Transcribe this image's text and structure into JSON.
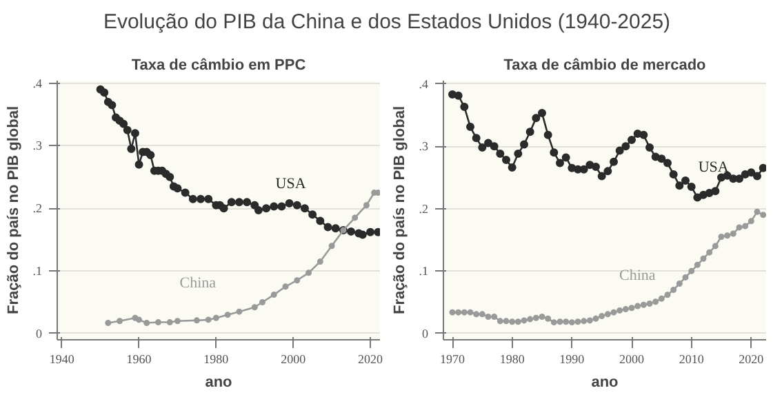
{
  "chart_data": [
    {
      "type": "other",
      "title": "Evolução do PIB da China e dos Estados Unidos (1940-2025)"
    },
    {
      "type": "line",
      "title": "Taxa de câmbio em PPC",
      "xlabel": "ano",
      "ylabel": "Fração do país no PIB global",
      "marker": "circle",
      "grid": "y",
      "xlim": [
        1938.8,
        2022.5
      ],
      "xticks": [
        1940,
        1960,
        1980,
        2000,
        2020
      ],
      "ylim": [
        -0.01,
        0.404
      ],
      "yticks": [
        {
          "value": 0,
          "label": "0"
        },
        {
          "value": 0.1,
          "label": ".1"
        },
        {
          "value": 0.2,
          "label": ".2"
        },
        {
          "value": 0.3,
          "label": ".3"
        },
        {
          "value": 0.4,
          "label": ".4"
        }
      ],
      "series": [
        {
          "name": "USA",
          "color": "#2b2b2b",
          "x": [
            1950,
            1951,
            1952,
            1953,
            1954,
            1955,
            1956,
            1957,
            1958,
            1959,
            1960,
            1961,
            1962,
            1963,
            1964,
            1965,
            1966,
            1967,
            1968,
            1969,
            1970,
            1972,
            1974,
            1976,
            1978,
            1980,
            1981,
            1982,
            1984,
            1986,
            1988,
            1990,
            1991,
            1993,
            1995,
            1997,
            1999,
            2001,
            2003,
            2005,
            2007,
            2009,
            2011,
            2013,
            2015,
            2017,
            2018,
            2020,
            2022
          ],
          "values": [
            0.39,
            0.385,
            0.37,
            0.365,
            0.345,
            0.34,
            0.335,
            0.325,
            0.295,
            0.32,
            0.27,
            0.29,
            0.29,
            0.285,
            0.26,
            0.26,
            0.26,
            0.255,
            0.25,
            0.235,
            0.232,
            0.225,
            0.215,
            0.215,
            0.215,
            0.205,
            0.205,
            0.2,
            0.21,
            0.21,
            0.21,
            0.205,
            0.197,
            0.2,
            0.203,
            0.203,
            0.208,
            0.205,
            0.2,
            0.19,
            0.18,
            0.17,
            0.168,
            0.165,
            0.163,
            0.16,
            0.158,
            0.162,
            0.162
          ]
        },
        {
          "name": "China",
          "color": "#9a9a9a",
          "x": [
            1952,
            1955,
            1959,
            1960,
            1962,
            1965,
            1968,
            1970,
            1975,
            1978,
            1980,
            1983,
            1986,
            1990,
            1992,
            1995,
            1998,
            2001,
            2004,
            2007,
            2010,
            2013,
            2016,
            2019,
            2021,
            2022
          ],
          "values": [
            0.017,
            0.02,
            0.025,
            0.022,
            0.017,
            0.018,
            0.018,
            0.02,
            0.021,
            0.022,
            0.025,
            0.03,
            0.035,
            0.042,
            0.05,
            0.062,
            0.075,
            0.085,
            0.097,
            0.115,
            0.14,
            0.165,
            0.185,
            0.205,
            0.225,
            0.225
          ]
        }
      ]
    },
    {
      "type": "line",
      "title": "Taxa de câmbio de mercado",
      "xlabel": "ano",
      "ylabel": "Fração do país no PIB global",
      "marker": "circle",
      "grid": "y",
      "xlim": [
        1968.5,
        2022.5
      ],
      "xticks": [
        1970,
        1980,
        1990,
        2000,
        2010,
        2020
      ],
      "ylim": [
        -0.01,
        0.405
      ],
      "yticks": [
        {
          "value": 0,
          "label": "0"
        },
        {
          "value": 0.1,
          "label": ".1"
        },
        {
          "value": 0.2,
          "label": ".2"
        },
        {
          "value": 0.3,
          "label": ".3"
        },
        {
          "value": 0.4,
          "label": ".4"
        }
      ],
      "series": [
        {
          "name": "USA",
          "color": "#2b2b2b",
          "x": [
            1970,
            1971,
            1972,
            1973,
            1974,
            1975,
            1976,
            1977,
            1978,
            1979,
            1980,
            1981,
            1982,
            1983,
            1984,
            1985,
            1986,
            1987,
            1988,
            1989,
            1990,
            1991,
            1992,
            1993,
            1994,
            1995,
            1996,
            1997,
            1998,
            1999,
            2000,
            2001,
            2002,
            2003,
            2004,
            2005,
            2006,
            2007,
            2008,
            2009,
            2010,
            2011,
            2012,
            2013,
            2014,
            2015,
            2016,
            2017,
            2018,
            2019,
            2020,
            2021,
            2022
          ],
          "values": [
            0.383,
            0.381,
            0.363,
            0.331,
            0.313,
            0.298,
            0.305,
            0.3,
            0.288,
            0.278,
            0.266,
            0.288,
            0.303,
            0.323,
            0.345,
            0.353,
            0.318,
            0.29,
            0.273,
            0.282,
            0.265,
            0.263,
            0.263,
            0.27,
            0.267,
            0.252,
            0.26,
            0.275,
            0.293,
            0.3,
            0.31,
            0.32,
            0.318,
            0.298,
            0.283,
            0.28,
            0.273,
            0.255,
            0.237,
            0.245,
            0.235,
            0.218,
            0.222,
            0.225,
            0.228,
            0.25,
            0.253,
            0.248,
            0.248,
            0.255,
            0.258,
            0.252,
            0.265
          ]
        },
        {
          "name": "China",
          "color": "#9a9a9a",
          "x": [
            1970,
            1971,
            1972,
            1973,
            1974,
            1975,
            1976,
            1977,
            1978,
            1979,
            1980,
            1981,
            1982,
            1983,
            1984,
            1985,
            1986,
            1987,
            1988,
            1989,
            1990,
            1991,
            1992,
            1993,
            1994,
            1995,
            1996,
            1997,
            1998,
            1999,
            2000,
            2001,
            2002,
            2003,
            2004,
            2005,
            2006,
            2007,
            2008,
            2009,
            2010,
            2011,
            2012,
            2013,
            2014,
            2015,
            2016,
            2017,
            2018,
            2019,
            2020,
            2021,
            2022
          ],
          "values": [
            0.034,
            0.034,
            0.034,
            0.034,
            0.031,
            0.031,
            0.027,
            0.027,
            0.02,
            0.02,
            0.019,
            0.019,
            0.021,
            0.023,
            0.025,
            0.027,
            0.024,
            0.018,
            0.019,
            0.019,
            0.018,
            0.019,
            0.02,
            0.021,
            0.024,
            0.028,
            0.031,
            0.034,
            0.037,
            0.039,
            0.041,
            0.044,
            0.046,
            0.048,
            0.051,
            0.056,
            0.062,
            0.07,
            0.08,
            0.09,
            0.1,
            0.11,
            0.12,
            0.13,
            0.14,
            0.155,
            0.157,
            0.16,
            0.17,
            0.172,
            0.18,
            0.195,
            0.19
          ]
        }
      ]
    }
  ]
}
